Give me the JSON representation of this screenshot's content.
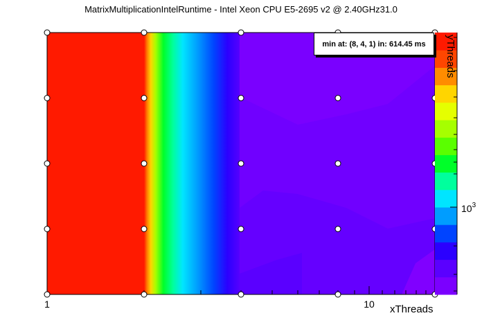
{
  "chart_data": {
    "type": "heatmap",
    "title": "MatrixMultiplicationIntelRuntime - Intel Xeon CPU E5-2695 v2 @ 2.40GHz31.0",
    "xlabel": "xThreads",
    "ylabel": "yThreads",
    "x_scale": "log",
    "xlim": [
      1,
      16
    ],
    "x_tick_labels": [
      "1",
      "10"
    ],
    "x_points": [
      1,
      2,
      4,
      8,
      16
    ],
    "y_rows": 5,
    "z_scale": "log",
    "z_tick_label": "10^3",
    "annotation": "min at: (8, 4, 1) in: 614.45 ms",
    "min_point": {
      "x": 8,
      "y": 4,
      "z": 1,
      "runtime_ms": 614.45
    },
    "palette": [
      "#7b00ff",
      "#5a00ff",
      "#2b00ff",
      "#0044ff",
      "#009dff",
      "#00e5ff",
      "#00ff9d",
      "#00ff29",
      "#5aff00",
      "#a6ff00",
      "#e5ff00",
      "#ffd500",
      "#ff8c00",
      "#ff4600",
      "#ff1a00"
    ]
  },
  "labels": {
    "title": "MatrixMultiplicationIntelRuntime - Intel Xeon CPU E5-2695 v2 @ 2.40GHz31.0",
    "annotation": "min at: (8, 4, 1) in: 614.45 ms",
    "xlabel": "xThreads",
    "ylabel": "yThreads",
    "x_tick_1": "1",
    "x_tick_10": "10",
    "z_tick_base": "10",
    "z_tick_exp": "3"
  }
}
